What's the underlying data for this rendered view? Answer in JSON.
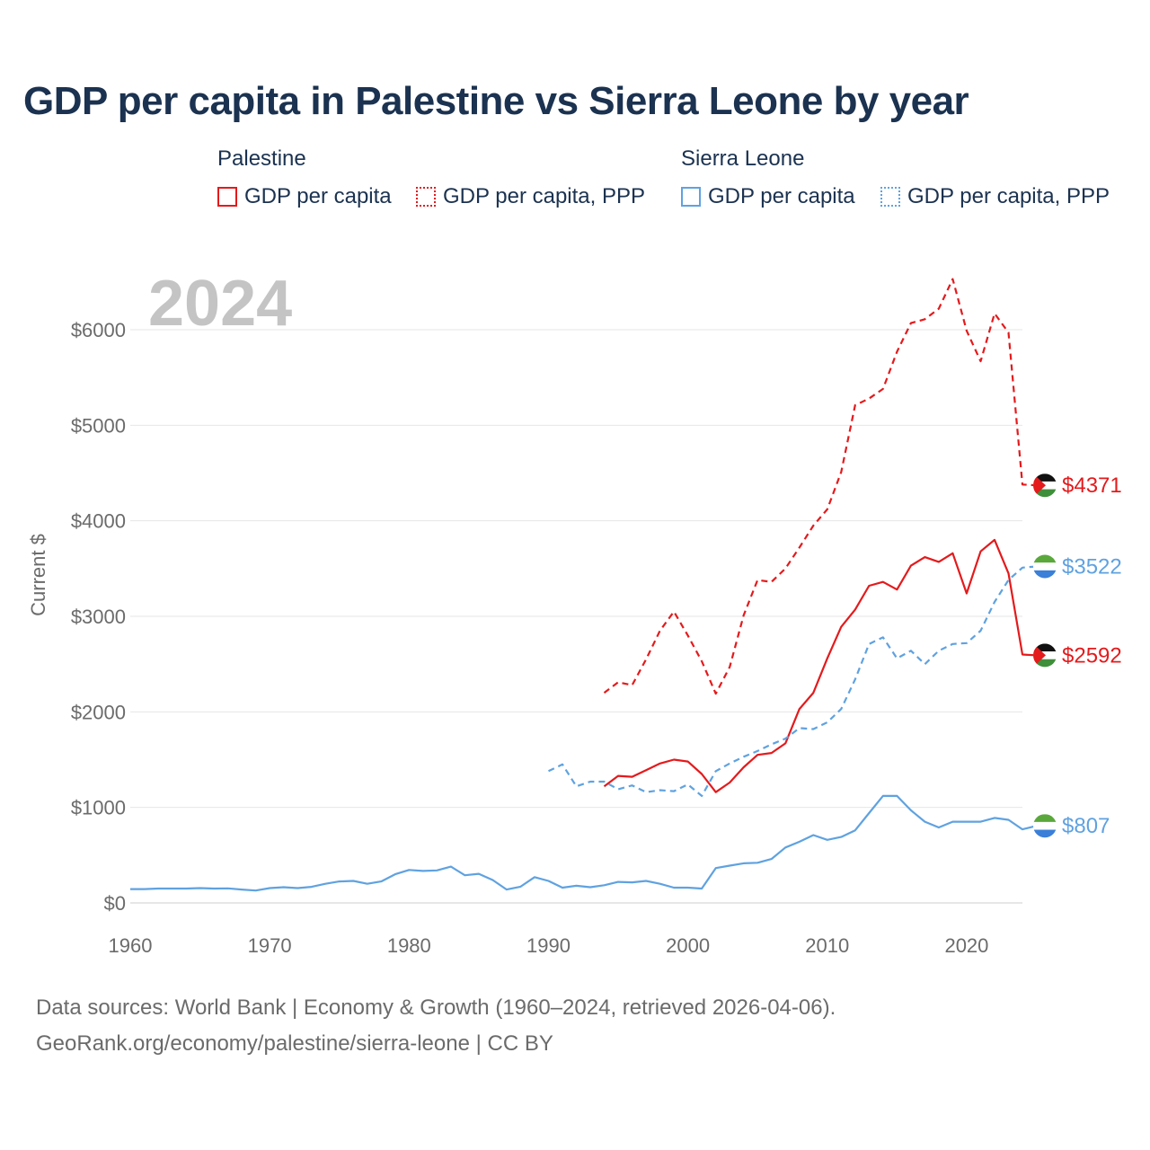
{
  "title": "GDP per capita in Palestine vs Sierra Leone by year",
  "legend": {
    "groups": [
      {
        "name": "Palestine",
        "items": [
          "GDP per capita",
          "GDP per capita, PPP"
        ]
      },
      {
        "name": "Sierra Leone",
        "items": [
          "GDP per capita",
          "GDP per capita, PPP"
        ]
      }
    ]
  },
  "year_watermark": "2024",
  "footer": {
    "line1": "Data sources: World Bank | Economy & Growth (1960–2024, retrieved 2026-04-06).",
    "line2": "GeoRank.org/economy/palestine/sierra-leone | CC BY"
  },
  "colors": {
    "palestine": "#e41a1c",
    "sierra_leone": "#5fa2e0",
    "grid": "#e6e6e6",
    "axis_text": "#6b6b6b"
  },
  "chart_data": {
    "type": "line",
    "title": "GDP per capita in Palestine vs Sierra Leone by year",
    "xlabel": "",
    "ylabel": "Current $",
    "xlim": [
      1960,
      2024
    ],
    "ylim": [
      0,
      6000
    ],
    "x_ticks": [
      1960,
      1970,
      1980,
      1990,
      2000,
      2010,
      2020
    ],
    "y_ticks": [
      0,
      1000,
      2000,
      3000,
      4000,
      5000,
      6000
    ],
    "y_tick_labels": [
      "$0",
      "$1000",
      "$2000",
      "$3000",
      "$4000",
      "$5000",
      "$6000"
    ],
    "grid": true,
    "series": [
      {
        "name": "Palestine GDP per capita",
        "country": "Palestine",
        "style": "solid",
        "color": "#e41a1c",
        "start_year": 1994,
        "values": [
          1220,
          1330,
          1320,
          1390,
          1460,
          1500,
          1480,
          1350,
          1160,
          1260,
          1420,
          1550,
          1570,
          1670,
          2030,
          2200,
          2560,
          2890,
          3070,
          3320,
          3360,
          3280,
          3530,
          3620,
          3570,
          3660,
          3240,
          3680,
          3800,
          3450,
          2600,
          2592
        ],
        "end_label": "$2592"
      },
      {
        "name": "Palestine GDP per capita, PPP",
        "country": "Palestine",
        "style": "dashed",
        "color": "#e41a1c",
        "start_year": 1994,
        "values": [
          2200,
          2310,
          2280,
          2550,
          2850,
          3050,
          2800,
          2530,
          2190,
          2470,
          3010,
          3380,
          3360,
          3500,
          3720,
          3950,
          4120,
          4510,
          5210,
          5280,
          5380,
          5770,
          6070,
          6110,
          6220,
          6530,
          5990,
          5670,
          6170,
          5970,
          4380,
          4371
        ],
        "end_label": "$4371"
      },
      {
        "name": "Sierra Leone GDP per capita",
        "country": "Sierra Leone",
        "style": "solid",
        "color": "#5fa2e0",
        "start_year": 1960,
        "values": [
          145,
          145,
          150,
          150,
          150,
          155,
          150,
          152,
          140,
          130,
          155,
          165,
          155,
          168,
          200,
          225,
          230,
          200,
          225,
          300,
          345,
          335,
          340,
          380,
          290,
          305,
          240,
          140,
          170,
          270,
          230,
          160,
          180,
          165,
          185,
          220,
          215,
          230,
          200,
          160,
          160,
          150,
          365,
          390,
          415,
          420,
          460,
          580,
          640,
          710,
          660,
          690,
          760,
          940,
          1120,
          1120,
          970,
          850,
          790,
          850,
          850,
          850,
          890,
          870,
          770,
          807
        ],
        "end_label": "$807"
      },
      {
        "name": "Sierra Leone GDP per capita, PPP",
        "country": "Sierra Leone",
        "style": "dashed",
        "color": "#5fa2e0",
        "start_year": 1990,
        "values": [
          1380,
          1450,
          1220,
          1270,
          1270,
          1190,
          1230,
          1160,
          1180,
          1170,
          1240,
          1120,
          1380,
          1460,
          1530,
          1590,
          1660,
          1720,
          1830,
          1820,
          1890,
          2030,
          2340,
          2710,
          2780,
          2560,
          2640,
          2500,
          2640,
          2710,
          2720,
          2850,
          3150,
          3380,
          3510,
          3522
        ],
        "end_label": "$3522"
      }
    ]
  }
}
